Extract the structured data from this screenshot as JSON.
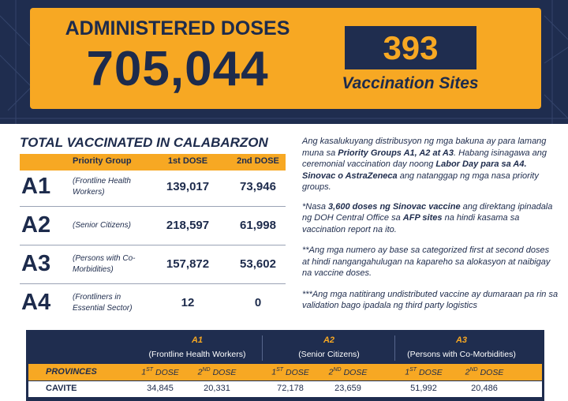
{
  "header": {
    "title": "ADMINISTERED DOSES",
    "total": "705,044",
    "sites_count": "393",
    "sites_label": "Vaccination Sites"
  },
  "summary": {
    "title": "TOTAL VACCINATED IN CALABARZON",
    "columns": [
      "Priority Group",
      "1st DOSE",
      "2nd DOSE"
    ],
    "rows": [
      {
        "group": "A1",
        "description": "(Frontline Health Workers)",
        "dose1": "139,017",
        "dose2": "73,946"
      },
      {
        "group": "A2",
        "description": "(Senior Citizens)",
        "dose1": "218,597",
        "dose2": "61,998"
      },
      {
        "group": "A3",
        "description": "(Persons with Co-Morbidities)",
        "dose1": "157,872",
        "dose2": "53,602"
      },
      {
        "group": "A4",
        "description": "(Frontliners in Essential Sector)",
        "dose1": "12",
        "dose2": "0"
      }
    ]
  },
  "notes": [
    [
      "Ang kasalukuyang distribusyon ng mga bakuna ay para lamang muna sa ",
      "Priority Groups A1, A2 at A3",
      ". Habang isinagawa ang ceremonial vaccination day noong ",
      "Labor Day para sa A4. Sinovac o AstraZeneca",
      " ang natanggap ng mga nasa priority groups."
    ],
    [
      "*Nasa ",
      "3,600 doses ng Sinovac vaccine",
      " ang direktang ipinadala ng DOH Central Office sa ",
      "AFP sites",
      " na hindi kasama sa vaccination report na ito."
    ],
    [
      "**Ang mga numero ay base sa categorized first at second doses at hindi nangangahulugan na kapareho sa alokasyon at naibigay na vaccine doses."
    ],
    [
      "***Ang mga natitirang undistributed vaccine ay dumaraan pa rin sa validation bago ipadala ng third party logistics"
    ]
  ],
  "province_table": {
    "groups": [
      {
        "code": "A1",
        "name": "(Frontline Health Workers)"
      },
      {
        "code": "A2",
        "name": "(Senior Citizens)"
      },
      {
        "code": "A3",
        "name": "(Persons with Co-Morbidities)"
      }
    ],
    "provinces_header": "PROVINCES",
    "dose_headers": [
      {
        "num": "1",
        "sup": "ST",
        "text": "DOSE"
      },
      {
        "num": "2",
        "sup": "ND",
        "text": "DOSE"
      }
    ],
    "rows": [
      {
        "province": "CAVITE",
        "values": [
          "34,845",
          "20,331",
          "72,178",
          "23,659",
          "51,992",
          "20,486"
        ]
      }
    ]
  }
}
